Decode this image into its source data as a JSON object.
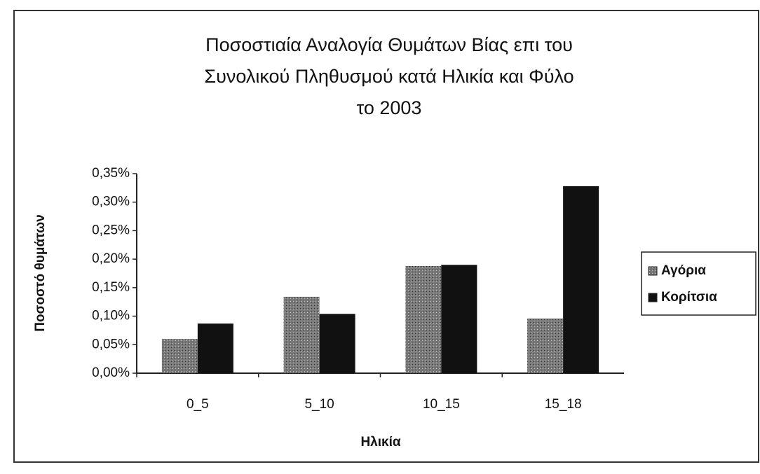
{
  "chart_data": {
    "type": "bar",
    "title": [
      "Ποσοστιαία Αναλογία Θυμάτων Βίας επι του",
      "Συνολικού Πληθυσμού κατά Ηλικία και Φύλο",
      "το 2003"
    ],
    "x_label": "Ηλικία",
    "y_label": "Ποσοστό θυμάτων",
    "categories": [
      "0_5",
      "5_10",
      "10_15",
      "15_18"
    ],
    "series": [
      {
        "name": "Αγόρια",
        "color": "#6e6e6e",
        "values": [
          0.06,
          0.134,
          0.188,
          0.096
        ]
      },
      {
        "name": "Κορίτσια",
        "color": "#111111",
        "values": [
          0.087,
          0.104,
          0.19,
          0.328
        ]
      }
    ],
    "ylim": [
      0,
      0.35
    ],
    "yticks": [
      {
        "value": 0,
        "label": "0,00%"
      },
      {
        "value": 0.05,
        "label": "0,05%"
      },
      {
        "value": 0.1,
        "label": "0,10%"
      },
      {
        "value": 0.15,
        "label": "0,15%"
      },
      {
        "value": 0.2,
        "label": "0,20%"
      },
      {
        "value": 0.25,
        "label": "0,25%"
      },
      {
        "value": 0.3,
        "label": "0,30%"
      },
      {
        "value": 0.35,
        "label": "0,35%"
      }
    ],
    "legend": "right",
    "grid": false
  }
}
